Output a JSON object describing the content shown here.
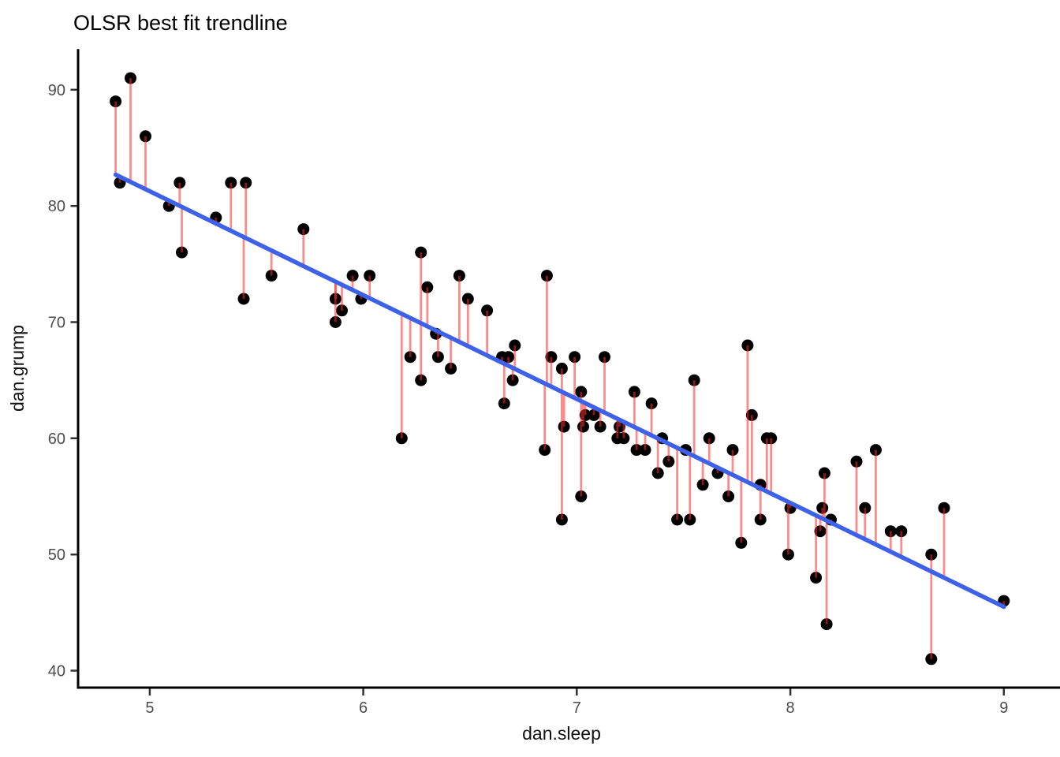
{
  "page": {
    "background": "#FFFFFF"
  },
  "chart_data": {
    "type": "scatter",
    "title": "OLSR best fit trendline",
    "xlabel": "dan.sleep",
    "ylabel": "dan.grump",
    "x_ticks": [
      5,
      6,
      7,
      8,
      9
    ],
    "y_ticks": [
      40,
      50,
      60,
      70,
      80,
      90
    ],
    "xlim": [
      4.67,
      9.26
    ],
    "ylim": [
      38.5,
      93.5
    ],
    "grid": false,
    "legend": false,
    "point_color": "#000000",
    "point_radius": 7.5,
    "residual_color": "#FA2D2D",
    "residual_opacity": 0.55,
    "residual_width": 2.8,
    "axis_color": "#000000",
    "tick_color": "#333333",
    "trendline": {
      "type": "OLS",
      "slope": -8.94,
      "intercept": 125.96,
      "x_start": 4.84,
      "x_end": 9.0,
      "color": "#3D62E9",
      "width": 5.5
    },
    "points": [
      [
        4.84,
        89
      ],
      [
        4.91,
        91
      ],
      [
        4.98,
        86
      ],
      [
        4.86,
        82
      ],
      [
        5.09,
        80
      ],
      [
        5.14,
        82
      ],
      [
        5.15,
        76
      ],
      [
        5.31,
        79
      ],
      [
        5.38,
        82
      ],
      [
        5.45,
        82
      ],
      [
        5.44,
        72
      ],
      [
        5.57,
        74
      ],
      [
        5.72,
        78
      ],
      [
        5.87,
        72
      ],
      [
        5.87,
        70
      ],
      [
        5.9,
        71
      ],
      [
        5.95,
        74
      ],
      [
        5.99,
        72
      ],
      [
        6.03,
        74
      ],
      [
        6.18,
        60
      ],
      [
        6.22,
        67
      ],
      [
        6.27,
        76
      ],
      [
        6.27,
        65
      ],
      [
        6.3,
        73
      ],
      [
        6.34,
        69
      ],
      [
        6.35,
        67
      ],
      [
        6.41,
        66
      ],
      [
        6.45,
        74
      ],
      [
        6.49,
        72
      ],
      [
        6.58,
        71
      ],
      [
        6.65,
        67
      ],
      [
        6.66,
        63
      ],
      [
        6.68,
        67
      ],
      [
        6.7,
        65
      ],
      [
        6.71,
        68
      ],
      [
        6.85,
        59
      ],
      [
        6.86,
        74
      ],
      [
        6.88,
        67
      ],
      [
        6.93,
        66
      ],
      [
        6.93,
        53
      ],
      [
        6.94,
        61
      ],
      [
        6.99,
        67
      ],
      [
        7.02,
        64
      ],
      [
        7.02,
        55
      ],
      [
        7.03,
        61
      ],
      [
        7.04,
        62
      ],
      [
        7.08,
        62
      ],
      [
        7.11,
        61
      ],
      [
        7.13,
        67
      ],
      [
        7.19,
        60
      ],
      [
        7.2,
        61
      ],
      [
        7.22,
        60
      ],
      [
        7.27,
        64
      ],
      [
        7.28,
        59
      ],
      [
        7.32,
        59
      ],
      [
        7.35,
        63
      ],
      [
        7.38,
        57
      ],
      [
        7.4,
        60
      ],
      [
        7.43,
        58
      ],
      [
        7.47,
        53
      ],
      [
        7.51,
        59
      ],
      [
        7.53,
        53
      ],
      [
        7.55,
        65
      ],
      [
        7.59,
        56
      ],
      [
        7.62,
        60
      ],
      [
        7.66,
        57
      ],
      [
        7.71,
        55
      ],
      [
        7.73,
        59
      ],
      [
        7.77,
        51
      ],
      [
        7.8,
        68
      ],
      [
        7.82,
        62
      ],
      [
        7.86,
        53
      ],
      [
        7.86,
        56
      ],
      [
        7.89,
        60
      ],
      [
        7.91,
        60
      ],
      [
        7.99,
        50
      ],
      [
        8.0,
        54
      ],
      [
        8.12,
        48
      ],
      [
        8.14,
        52
      ],
      [
        8.15,
        54
      ],
      [
        8.16,
        57
      ],
      [
        8.17,
        44
      ],
      [
        8.19,
        53
      ],
      [
        8.31,
        58
      ],
      [
        8.35,
        54
      ],
      [
        8.4,
        59
      ],
      [
        8.47,
        52
      ],
      [
        8.52,
        52
      ],
      [
        8.66,
        50
      ],
      [
        8.66,
        41
      ],
      [
        8.72,
        54
      ],
      [
        9.0,
        46
      ]
    ]
  }
}
